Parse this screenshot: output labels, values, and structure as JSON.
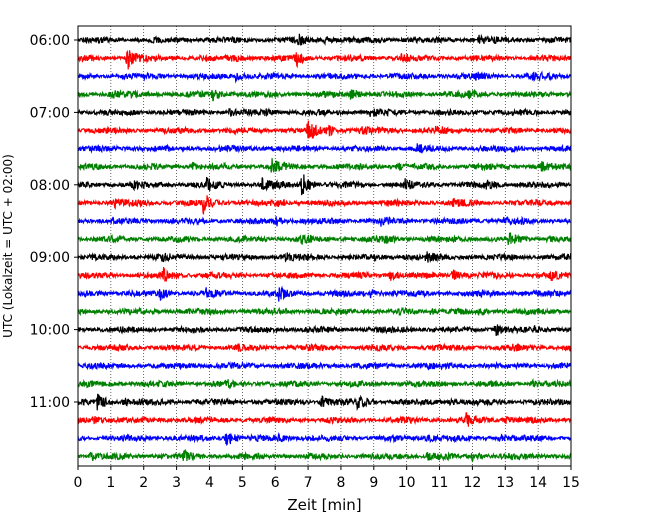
{
  "chart_data": {
    "type": "line",
    "title": "",
    "xlabel": "Zeit  [min]",
    "ylabel": "UTC (Lokalzeit = UTC + 02:00)",
    "xlim": [
      0,
      15
    ],
    "x_ticks": [
      "0",
      "1",
      "2",
      "3",
      "4",
      "5",
      "6",
      "7",
      "8",
      "9",
      "10",
      "11",
      "12",
      "13",
      "14",
      "15"
    ],
    "y_ticks": [
      "06:00",
      "07:00",
      "08:00",
      "09:00",
      "10:00",
      "11:00"
    ],
    "grid": "vertical dotted lines at each minute",
    "trace_interval_min": 15,
    "trace_color_cycle": [
      "#000000",
      "#ff0000",
      "#0000ff",
      "#008000"
    ],
    "series": [
      {
        "start": "06:00",
        "color": "#000000",
        "events": [
          [
            6.7,
            0.35
          ],
          [
            7.5,
            0.3
          ],
          [
            12.2,
            0.25
          ]
        ]
      },
      {
        "start": "06:15",
        "color": "#ff0000",
        "events": [
          [
            1.5,
            1.0
          ],
          [
            4.7,
            0.3
          ],
          [
            6.6,
            0.8
          ],
          [
            9.8,
            0.25
          ]
        ]
      },
      {
        "start": "06:30",
        "color": "#0000ff",
        "events": [
          [
            4.8,
            0.35
          ],
          [
            12.1,
            0.25
          ],
          [
            13.8,
            0.3
          ]
        ]
      },
      {
        "start": "06:45",
        "color": "#008000",
        "events": [
          [
            1.0,
            0.3
          ],
          [
            4.1,
            0.55
          ],
          [
            8.3,
            0.45
          ],
          [
            11.9,
            0.3
          ]
        ]
      },
      {
        "start": "07:00",
        "color": "#000000",
        "events": [
          [
            4.6,
            0.3
          ],
          [
            5.7,
            0.25
          ],
          [
            8.9,
            0.3
          ]
        ]
      },
      {
        "start": "07:15",
        "color": "#ff0000",
        "events": [
          [
            7.0,
            0.9
          ],
          [
            7.6,
            0.45
          ],
          [
            8.6,
            0.25
          ],
          [
            10.9,
            0.3
          ]
        ]
      },
      {
        "start": "07:30",
        "color": "#0000ff",
        "events": [
          [
            10.3,
            0.45
          ],
          [
            13.2,
            0.25
          ]
        ]
      },
      {
        "start": "07:45",
        "color": "#008000",
        "events": [
          [
            3.5,
            0.3
          ],
          [
            5.9,
            0.65
          ],
          [
            9.7,
            0.3
          ],
          [
            14.1,
            0.3
          ]
        ]
      },
      {
        "start": "08:00",
        "color": "#000000",
        "events": [
          [
            1.6,
            0.3
          ],
          [
            3.9,
            0.55
          ],
          [
            5.6,
            0.6
          ],
          [
            6.8,
            1.3
          ],
          [
            9.9,
            0.45
          ],
          [
            12.4,
            0.5
          ]
        ]
      },
      {
        "start": "08:15",
        "color": "#ff0000",
        "events": [
          [
            1.1,
            0.35
          ],
          [
            3.8,
            0.9
          ],
          [
            6.1,
            0.3
          ],
          [
            11.4,
            0.25
          ]
        ]
      },
      {
        "start": "08:30",
        "color": "#0000ff",
        "events": [
          [
            6.0,
            0.45
          ],
          [
            9.2,
            0.3
          ],
          [
            12.9,
            0.3
          ]
        ]
      },
      {
        "start": "08:45",
        "color": "#008000",
        "events": [
          [
            6.8,
            0.4
          ],
          [
            9.3,
            0.3
          ],
          [
            13.1,
            0.45
          ],
          [
            14.3,
            0.25
          ]
        ]
      },
      {
        "start": "09:00",
        "color": "#000000",
        "events": [
          [
            2.5,
            0.3
          ],
          [
            6.3,
            0.3
          ],
          [
            9.8,
            0.25
          ],
          [
            10.6,
            0.3
          ]
        ]
      },
      {
        "start": "09:15",
        "color": "#ff0000",
        "events": [
          [
            2.6,
            0.55
          ],
          [
            9.5,
            0.45
          ],
          [
            11.4,
            0.55
          ],
          [
            14.4,
            0.3
          ]
        ]
      },
      {
        "start": "09:30",
        "color": "#0000ff",
        "events": [
          [
            2.5,
            0.45
          ],
          [
            3.9,
            0.3
          ],
          [
            6.1,
            0.5
          ],
          [
            8.9,
            0.35
          ],
          [
            12.3,
            0.3
          ]
        ]
      },
      {
        "start": "09:45",
        "color": "#008000",
        "events": [
          [
            10.7,
            0.25
          ],
          [
            12.2,
            0.2
          ]
        ]
      },
      {
        "start": "10:00",
        "color": "#000000",
        "events": [
          [
            12.7,
            0.65
          ],
          [
            13.9,
            0.2
          ]
        ]
      },
      {
        "start": "10:15",
        "color": "#ff0000",
        "events": [
          [
            4.8,
            0.2
          ],
          [
            13.2,
            0.2
          ]
        ]
      },
      {
        "start": "10:30",
        "color": "#0000ff",
        "events": [
          [
            10.5,
            0.2
          ]
        ]
      },
      {
        "start": "10:45",
        "color": "#008000",
        "events": [
          [
            4.5,
            0.2
          ],
          [
            13.8,
            0.25
          ]
        ]
      },
      {
        "start": "11:00",
        "color": "#000000",
        "events": [
          [
            0.6,
            0.9
          ],
          [
            1.4,
            0.35
          ],
          [
            7.4,
            0.55
          ],
          [
            8.5,
            0.6
          ],
          [
            11.3,
            0.25
          ]
        ]
      },
      {
        "start": "11:15",
        "color": "#ff0000",
        "events": [
          [
            0.5,
            0.3
          ],
          [
            11.8,
            0.5
          ],
          [
            13.0,
            0.25
          ]
        ]
      },
      {
        "start": "11:30",
        "color": "#0000ff",
        "events": [
          [
            4.5,
            0.85
          ],
          [
            6.1,
            0.3
          ],
          [
            10.6,
            0.35
          ],
          [
            12.8,
            0.3
          ]
        ]
      },
      {
        "start": "11:45",
        "color": "#008000",
        "events": [
          [
            0.4,
            0.45
          ],
          [
            3.2,
            0.4
          ],
          [
            10.6,
            0.3
          ],
          [
            12.0,
            0.3
          ]
        ]
      }
    ]
  }
}
